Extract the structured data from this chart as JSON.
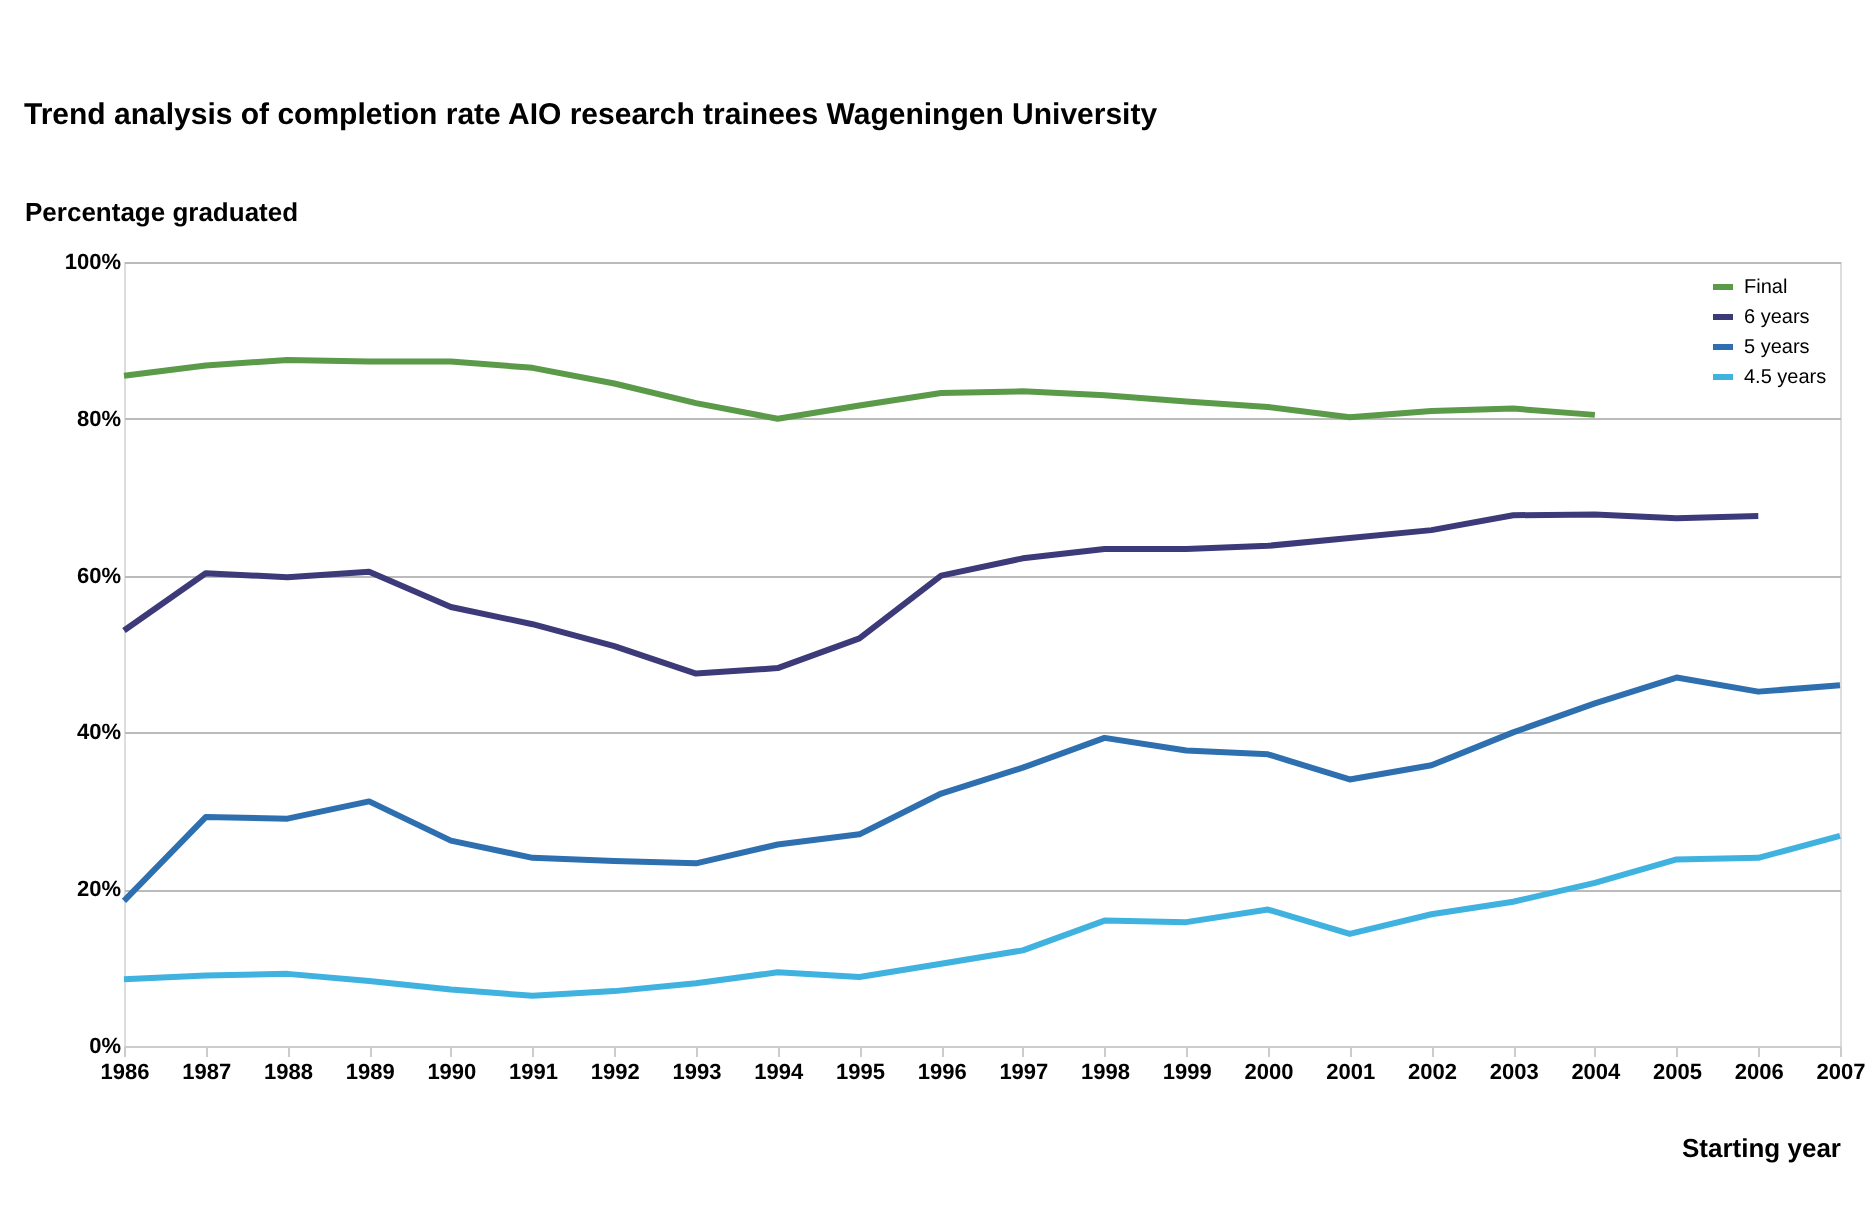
{
  "chart_data": {
    "type": "line",
    "title": "Trend analysis of completion rate AIO research trainees Wageningen University",
    "ylabel": "Percentage graduated",
    "xlabel": "Starting year",
    "categories": [
      "1986",
      "1987",
      "1988",
      "1989",
      "1990",
      "1991",
      "1992",
      "1993",
      "1994",
      "1995",
      "1996",
      "1997",
      "1998",
      "1999",
      "2000",
      "2001",
      "2002",
      "2003",
      "2004",
      "2005",
      "2006",
      "2007"
    ],
    "series": [
      {
        "name": "Final",
        "color": "#5a9a48",
        "values": [
          85.5,
          86.8,
          87.5,
          87.3,
          87.3,
          86.5,
          84.5,
          82,
          80,
          81.7,
          83.3,
          83.5,
          83,
          82.2,
          81.5,
          80.2,
          81,
          81.3,
          80.5,
          null,
          null,
          null
        ]
      },
      {
        "name": "6 years",
        "color": "#3d3a7a",
        "values": [
          53,
          60.3,
          59.8,
          60.5,
          56,
          53.8,
          51,
          47.5,
          48.2,
          52,
          60,
          62.2,
          63.4,
          63.4,
          63.8,
          64.8,
          65.8,
          67.7,
          67.8,
          67.3,
          67.6,
          null
        ]
      },
      {
        "name": "5 years",
        "color": "#2e6fb0",
        "values": [
          18.5,
          29.2,
          29,
          31.2,
          26.2,
          24,
          23.6,
          23.3,
          25.7,
          27,
          32.2,
          35.5,
          39.3,
          37.7,
          37.2,
          34,
          35.8,
          40,
          43.7,
          47,
          45.2,
          46
        ]
      },
      {
        "name": "4.5 years",
        "color": "#3fb2e0",
        "values": [
          8.5,
          9,
          9.2,
          8.3,
          7.2,
          6.4,
          7,
          8,
          9.4,
          8.8,
          10.5,
          12.2,
          16,
          15.8,
          17.4,
          14.3,
          16.8,
          18.4,
          20.8,
          23.8,
          24,
          26.8
        ]
      }
    ],
    "ylim": [
      0,
      100
    ],
    "yticks": [
      {
        "value": 0,
        "label": "0%"
      },
      {
        "value": 20,
        "label": "20%"
      },
      {
        "value": 40,
        "label": "40%"
      },
      {
        "value": 60,
        "label": "60%"
      },
      {
        "value": 80,
        "label": "80%"
      },
      {
        "value": 100,
        "label": "100%"
      }
    ],
    "grid": "y",
    "legend": "top right"
  }
}
